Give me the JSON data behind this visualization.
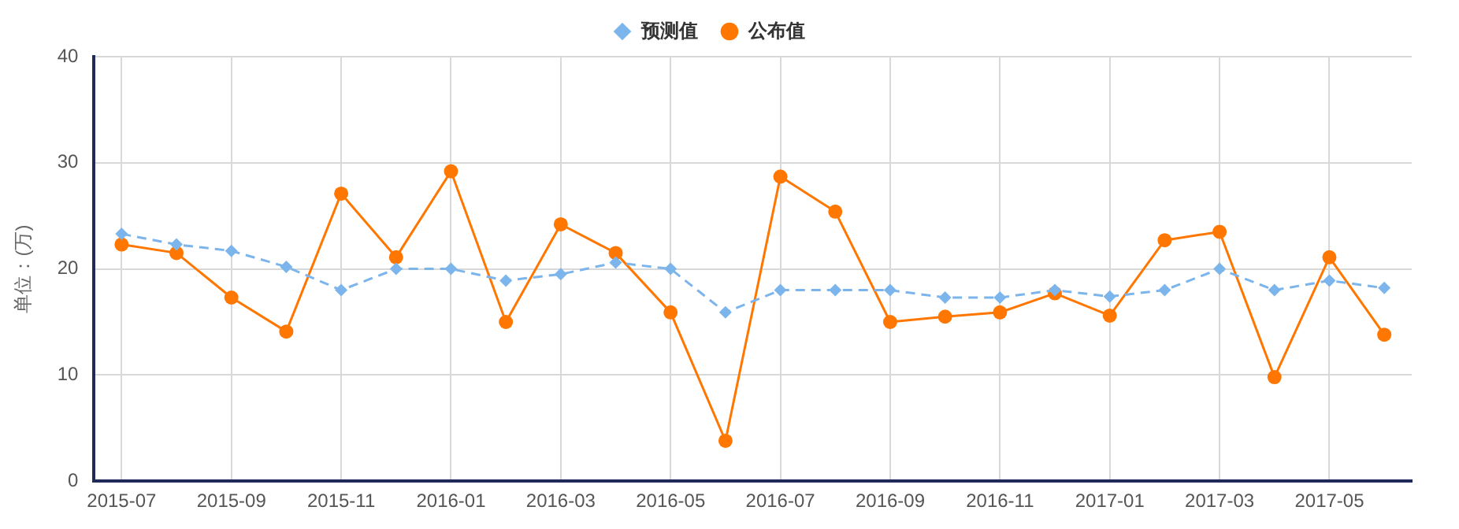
{
  "chart_data": {
    "type": "line",
    "ylabel": "单位：(万)",
    "categories": [
      "2015-07",
      null,
      "2015-09",
      null,
      "2015-11",
      null,
      "2016-01",
      null,
      "2016-03",
      null,
      "2016-05",
      null,
      "2016-07",
      null,
      "2016-09",
      null,
      "2016-11",
      null,
      "2017-01",
      null,
      "2017-03",
      null,
      "2017-05",
      null
    ],
    "series": [
      {
        "name": "公布值",
        "color": "#ff7700",
        "marker": "circle",
        "line_style": "solid",
        "values": [
          22.3,
          21.5,
          17.3,
          14.1,
          27.1,
          21.1,
          29.2,
          15.0,
          24.2,
          21.5,
          15.9,
          3.8,
          28.7,
          25.4,
          15.0,
          15.5,
          15.9,
          17.7,
          15.6,
          22.7,
          23.5,
          9.8,
          21.1,
          13.8
        ]
      },
      {
        "name": "预测值",
        "color": "#7cb5ec",
        "marker": "diamond",
        "line_style": "dashed",
        "values": [
          23.3,
          22.3,
          21.7,
          20.2,
          18.0,
          20.0,
          20.0,
          18.9,
          19.5,
          20.6,
          20.0,
          15.9,
          18.0,
          18.0,
          18.0,
          17.3,
          17.3,
          18.0,
          17.4,
          18.0,
          20.0,
          18.0,
          18.9,
          18.2
        ]
      }
    ],
    "ylim": [
      0,
      40
    ],
    "yticks": [
      0,
      10,
      20,
      30,
      40
    ],
    "grid": true,
    "legend": "top"
  }
}
